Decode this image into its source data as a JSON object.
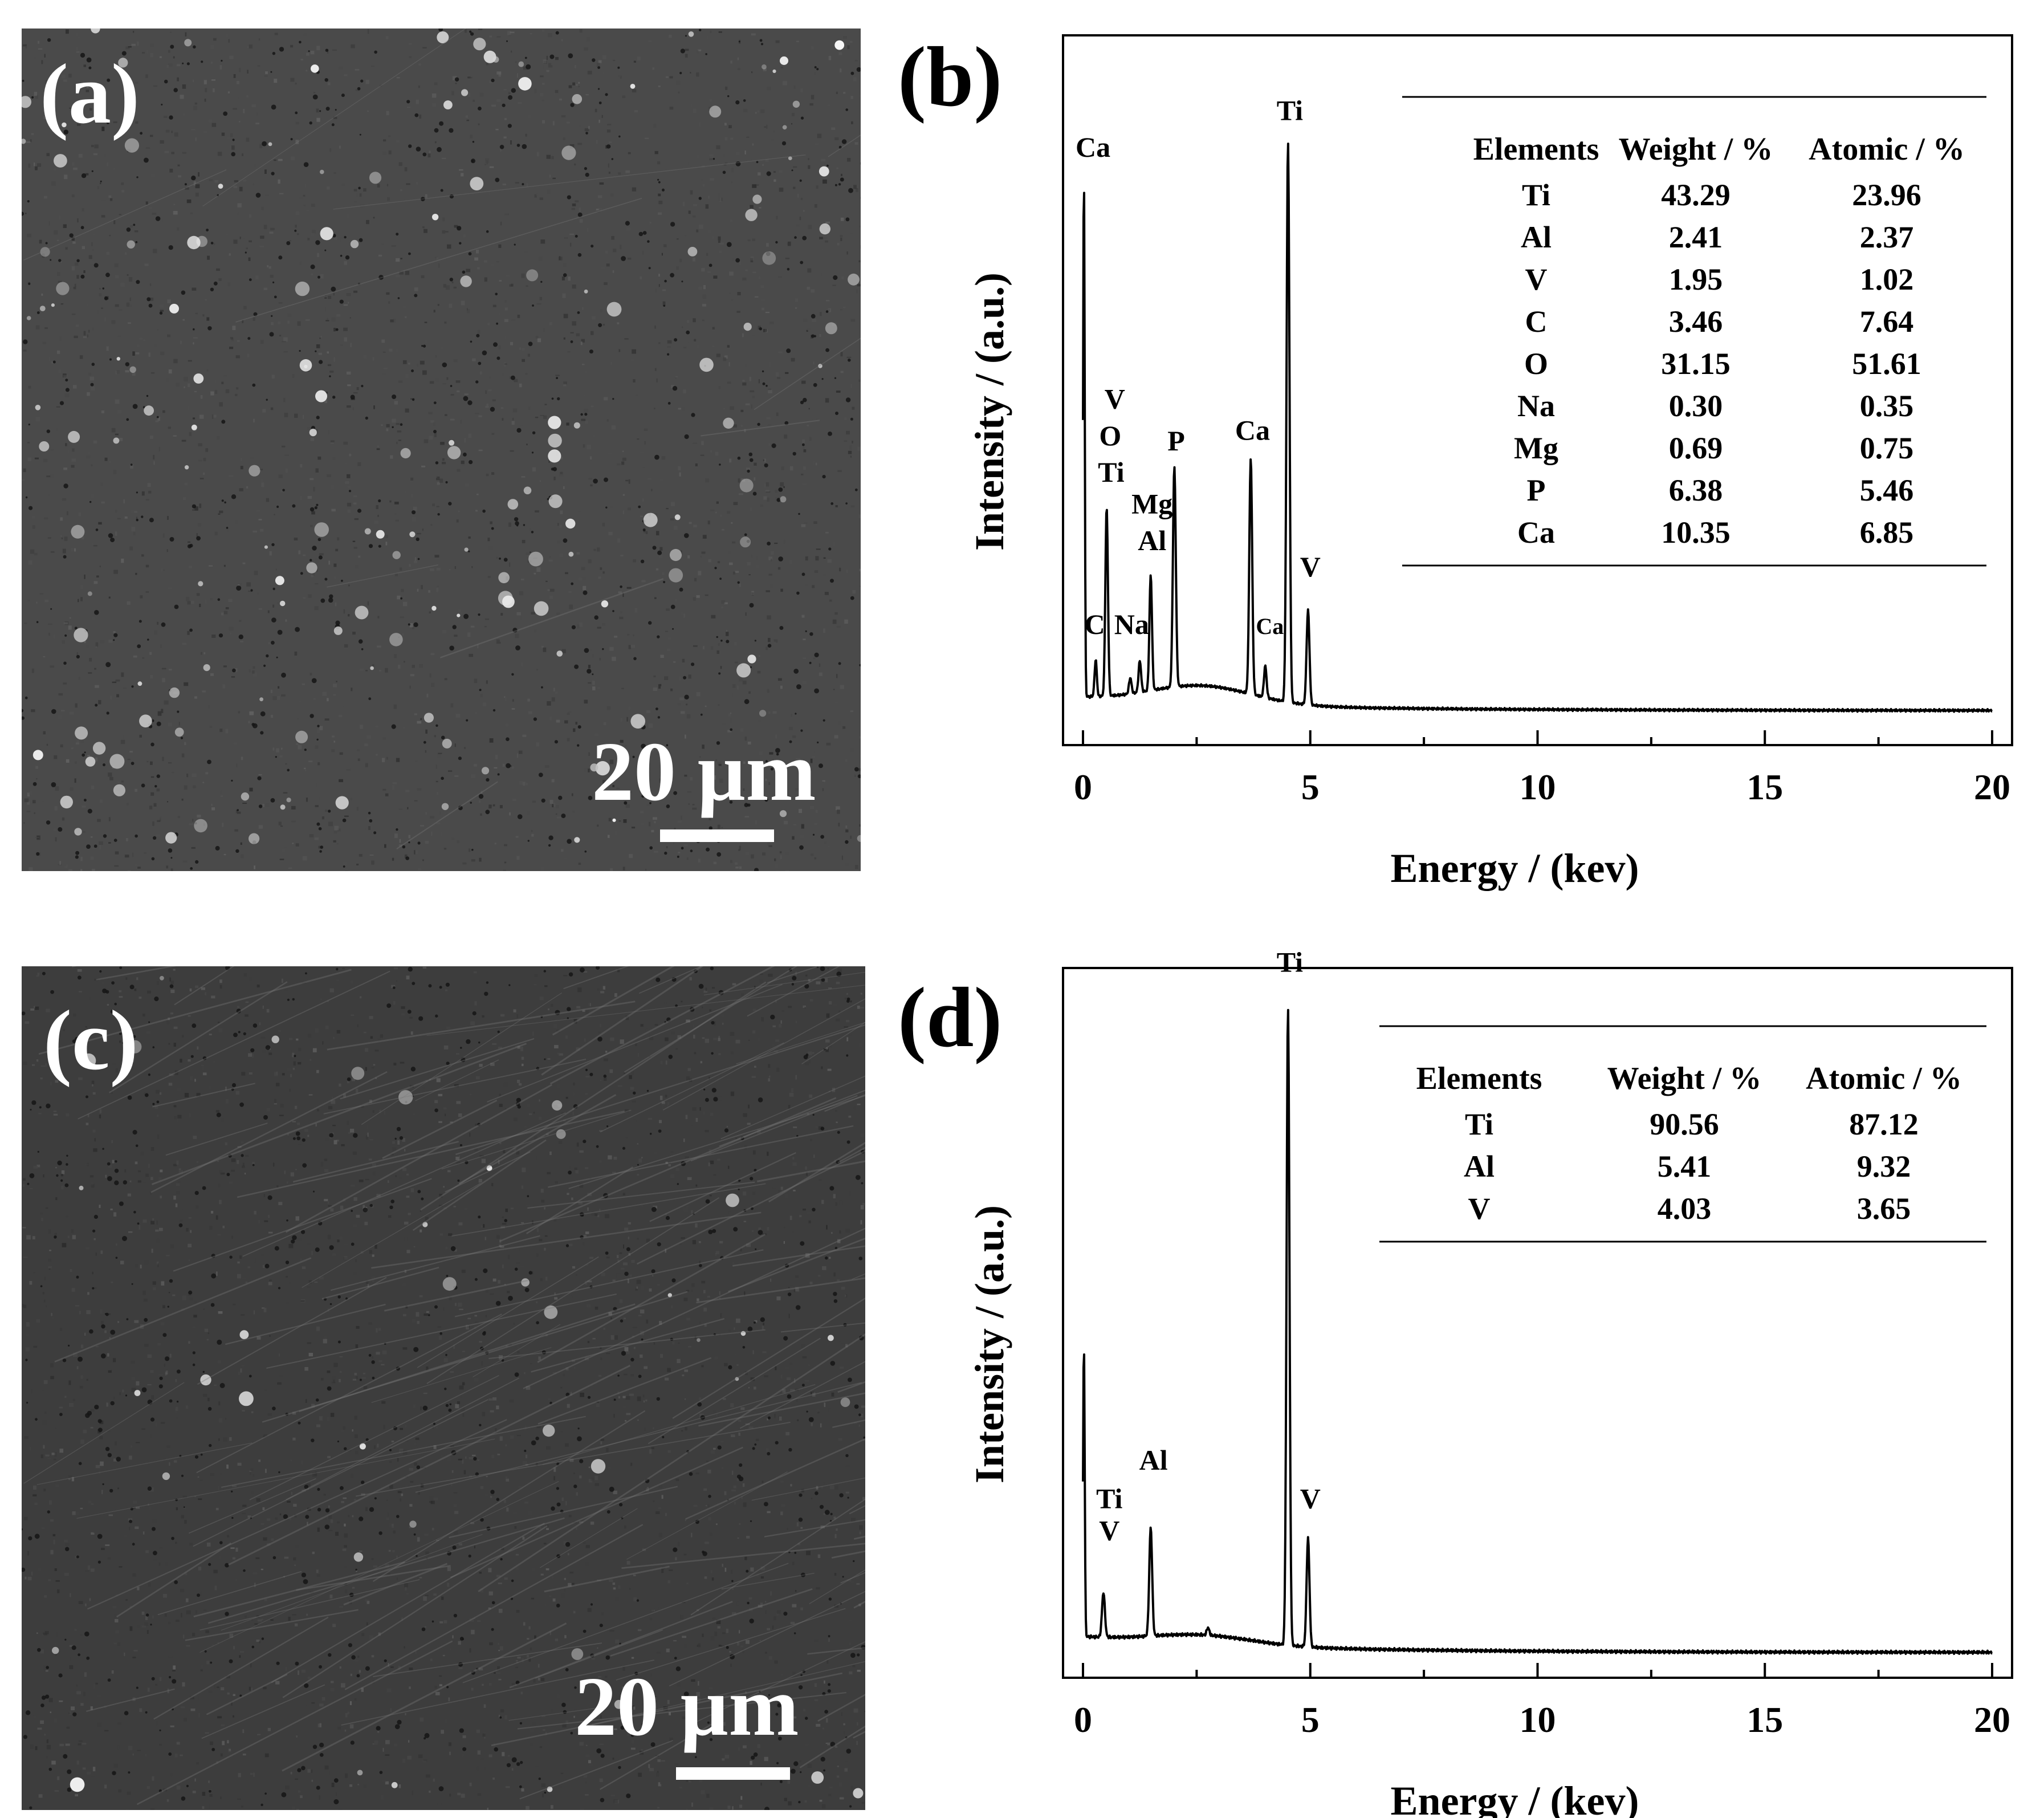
{
  "panels": {
    "a": {
      "label": "(a)",
      "scale_bar": "20 µm"
    },
    "b": {
      "label": "(b)"
    },
    "c": {
      "label": "(c)",
      "scale_bar": "20 µm"
    },
    "d": {
      "label": "(d)"
    }
  },
  "colors": {
    "sem_background_a": "#4a4a4a",
    "sem_background_c": "#3d3d3d",
    "line": "#000000"
  },
  "chart_data": [
    {
      "panel": "(b)",
      "type": "line",
      "xlabel": "Energy / (kev)",
      "ylabel": "Intensity / (a.u.)",
      "xlim": [
        0,
        20
      ],
      "ylim": [
        0,
        100
      ],
      "xticks": [
        0,
        5,
        10,
        15,
        20
      ],
      "series": [
        {
          "peaks": [
            {
              "x": 0.02,
              "y": 100,
              "w": 0.025
            },
            {
              "x": 0.28,
              "y": 7,
              "w": 0.035
            },
            {
              "x": 0.52,
              "y": 36,
              "w": 0.04
            },
            {
              "x": 1.04,
              "y": 3,
              "w": 0.04
            },
            {
              "x": 1.25,
              "y": 6,
              "w": 0.04
            },
            {
              "x": 1.49,
              "y": 22,
              "w": 0.04
            },
            {
              "x": 2.01,
              "y": 42,
              "w": 0.045
            },
            {
              "x": 3.69,
              "y": 45,
              "w": 0.045
            },
            {
              "x": 4.01,
              "y": 6,
              "w": 0.04
            },
            {
              "x": 4.51,
              "y": 107,
              "w": 0.045
            },
            {
              "x": 4.95,
              "y": 18,
              "w": 0.045
            }
          ],
          "baseline_start": 2.8,
          "baseline_end": 0.4,
          "hump": {
            "x": 2.6,
            "y": 3.5,
            "w": 1.6
          }
        }
      ],
      "annotations": [
        {
          "text": "Ca",
          "x": 0.22,
          "y": 106
        },
        {
          "text": "V",
          "x": 0.7,
          "y": 58
        },
        {
          "text": "O",
          "x": 0.6,
          "y": 51
        },
        {
          "text": "Ti",
          "x": 0.62,
          "y": 44
        },
        {
          "text": "P",
          "x": 2.05,
          "y": 50
        },
        {
          "text": "Mg",
          "x": 1.52,
          "y": 38
        },
        {
          "text": "Al",
          "x": 1.52,
          "y": 31
        },
        {
          "text": "C",
          "x": 0.26,
          "y": 15
        },
        {
          "text": "Na",
          "x": 1.07,
          "y": 15
        },
        {
          "text": "Ca",
          "x": 3.73,
          "y": 52
        },
        {
          "text": "Ca",
          "x": 4.11,
          "y": 15
        },
        {
          "text": "Ti",
          "x": 4.55,
          "y": 113
        },
        {
          "text": "V",
          "x": 5.0,
          "y": 26
        }
      ],
      "table": {
        "headers": [
          "Elements",
          "Weight / %",
          "Atomic / %"
        ],
        "rows": [
          [
            "Ti",
            "43.29",
            "23.96"
          ],
          [
            "Al",
            "2.41",
            "2.37"
          ],
          [
            "V",
            "1.95",
            "1.02"
          ],
          [
            "C",
            "3.46",
            "7.64"
          ],
          [
            "O",
            "31.15",
            "51.61"
          ],
          [
            "Na",
            "0.30",
            "0.35"
          ],
          [
            "Mg",
            "0.69",
            "0.75"
          ],
          [
            "P",
            "6.38",
            "5.46"
          ],
          [
            "Ca",
            "10.35",
            "6.85"
          ]
        ]
      }
    },
    {
      "panel": "(d)",
      "type": "line",
      "xlabel": "Energy / (kev)",
      "ylabel": "Intensity / (a.u.)",
      "xlim": [
        0,
        20
      ],
      "ylim": [
        0,
        100
      ],
      "xticks": [
        0,
        5,
        10,
        15,
        20
      ],
      "series": [
        {
          "peaks": [
            {
              "x": 0.02,
              "y": 46,
              "w": 0.025
            },
            {
              "x": 0.45,
              "y": 7,
              "w": 0.045
            },
            {
              "x": 1.49,
              "y": 17,
              "w": 0.045
            },
            {
              "x": 2.75,
              "y": 1.2,
              "w": 0.04
            },
            {
              "x": 4.51,
              "y": 100,
              "w": 0.045
            },
            {
              "x": 4.95,
              "y": 17,
              "w": 0.045
            }
          ],
          "baseline_start": 2.8,
          "baseline_end": 0.4,
          "hump": {
            "x": 2.6,
            "y": 1.5,
            "w": 1.6
          }
        }
      ],
      "annotations": [
        {
          "text": "Ti",
          "x": 0.58,
          "y": 23
        },
        {
          "text": "V",
          "x": 0.58,
          "y": 18
        },
        {
          "text": "Al",
          "x": 1.55,
          "y": 29
        },
        {
          "text": "Ti",
          "x": 4.55,
          "y": 107
        },
        {
          "text": "V",
          "x": 5.0,
          "y": 23
        }
      ],
      "table": {
        "headers": [
          "Elements",
          "Weight / %",
          "Atomic / %"
        ],
        "rows": [
          [
            "Ti",
            "90.56",
            "87.12"
          ],
          [
            "Al",
            "5.41",
            "9.32"
          ],
          [
            "V",
            "4.03",
            "3.65"
          ]
        ]
      }
    }
  ]
}
